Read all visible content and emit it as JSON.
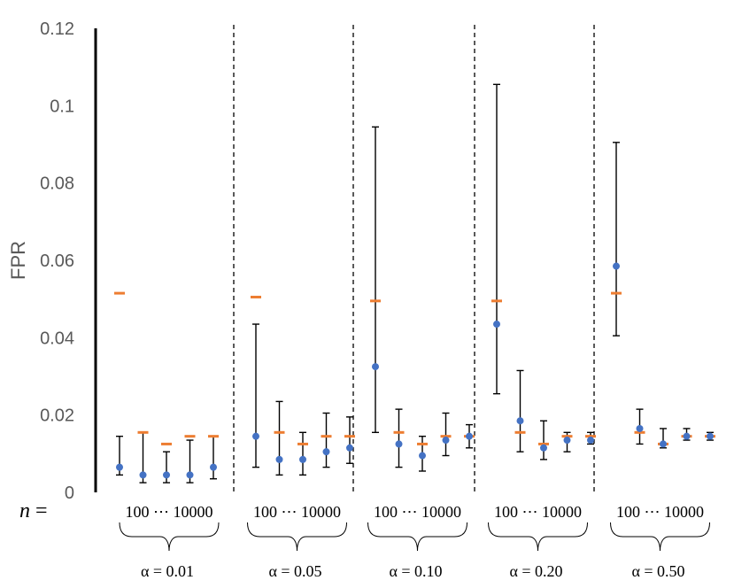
{
  "chart_data": {
    "type": "scatter",
    "title": "",
    "ylabel": "FPR",
    "xlabel": "",
    "ylim": [
      0,
      0.12
    ],
    "yticks": [
      "0",
      "0.02",
      "0.04",
      "0.06",
      "0.08",
      "0.1",
      "0.12"
    ],
    "n_label_var": "n",
    "n_label_eq": "=",
    "range_label_start": "100",
    "range_label_dots": "⋯",
    "range_label_end": "10000",
    "colors": {
      "estimate": "#4472c4",
      "reference": "#ed7d31",
      "axis": "#000000",
      "tick": "#595959"
    },
    "groups": [
      {
        "alpha_label": "α = 0.01",
        "points": [
          {
            "mean": 0.0065,
            "low": 0.0045,
            "high": 0.0145,
            "ref": 0.0515
          },
          {
            "mean": 0.0045,
            "low": 0.0025,
            "high": 0.0155,
            "ref": 0.0155
          },
          {
            "mean": 0.0045,
            "low": 0.0025,
            "high": 0.0105,
            "ref": 0.0125
          },
          {
            "mean": 0.0045,
            "low": 0.0025,
            "high": 0.0135,
            "ref": 0.0145
          },
          {
            "mean": 0.0065,
            "low": 0.0035,
            "high": 0.0145,
            "ref": 0.0145
          }
        ]
      },
      {
        "alpha_label": "α = 0.05",
        "points": [
          {
            "mean": 0.0145,
            "low": 0.0065,
            "high": 0.0435,
            "ref": 0.0505
          },
          {
            "mean": 0.0085,
            "low": 0.0045,
            "high": 0.0235,
            "ref": 0.0155
          },
          {
            "mean": 0.0085,
            "low": 0.0045,
            "high": 0.0155,
            "ref": 0.0125
          },
          {
            "mean": 0.0105,
            "low": 0.0065,
            "high": 0.0205,
            "ref": 0.0145
          },
          {
            "mean": 0.0115,
            "low": 0.0075,
            "high": 0.0195,
            "ref": 0.0145
          }
        ]
      },
      {
        "alpha_label": "α = 0.10",
        "points": [
          {
            "mean": 0.0325,
            "low": 0.0155,
            "high": 0.0945,
            "ref": 0.0495
          },
          {
            "mean": 0.0125,
            "low": 0.0065,
            "high": 0.0215,
            "ref": 0.0155
          },
          {
            "mean": 0.0095,
            "low": 0.0055,
            "high": 0.0145,
            "ref": 0.0125
          },
          {
            "mean": 0.0135,
            "low": 0.0095,
            "high": 0.0205,
            "ref": 0.0145
          },
          {
            "mean": 0.0145,
            "low": 0.0115,
            "high": 0.0175,
            "ref": 0.0145
          }
        ]
      },
      {
        "alpha_label": "α = 0.20",
        "points": [
          {
            "mean": 0.0435,
            "low": 0.0255,
            "high": 0.1055,
            "ref": 0.0495
          },
          {
            "mean": 0.0185,
            "low": 0.0105,
            "high": 0.0315,
            "ref": 0.0155
          },
          {
            "mean": 0.0115,
            "low": 0.0085,
            "high": 0.0185,
            "ref": 0.0125
          },
          {
            "mean": 0.0135,
            "low": 0.0105,
            "high": 0.0155,
            "ref": 0.0145
          },
          {
            "mean": 0.0135,
            "low": 0.0125,
            "high": 0.0155,
            "ref": 0.0145
          }
        ]
      },
      {
        "alpha_label": "α = 0.50",
        "points": [
          {
            "mean": 0.0585,
            "low": 0.0405,
            "high": 0.0905,
            "ref": 0.0515
          },
          {
            "mean": 0.0165,
            "low": 0.0125,
            "high": 0.0215,
            "ref": 0.0155
          },
          {
            "mean": 0.0125,
            "low": 0.0115,
            "high": 0.0165,
            "ref": 0.0125
          },
          {
            "mean": 0.0145,
            "low": 0.0135,
            "high": 0.0165,
            "ref": 0.0145
          },
          {
            "mean": 0.0145,
            "low": 0.0135,
            "high": 0.0155,
            "ref": 0.0145
          }
        ]
      }
    ]
  }
}
